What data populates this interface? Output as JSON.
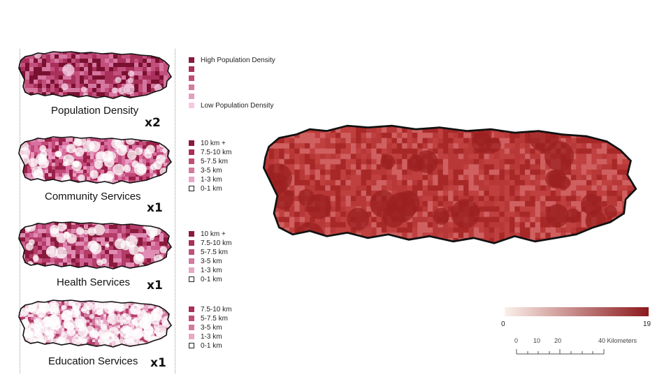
{
  "panels": [
    {
      "id": "population",
      "title": "Population Density",
      "weight": "x2",
      "colors": [
        "#7a1030",
        "#a8305a",
        "#c24f7c",
        "#d576a0",
        "#e6a5c4",
        "#f6d6e8"
      ],
      "legend": [
        {
          "label": "High Population Density",
          "color": "#8a1a3c"
        },
        {
          "label": "",
          "color": "#a8305a"
        },
        {
          "label": "",
          "color": "#bf4f7a"
        },
        {
          "label": "",
          "color": "#d27aa0"
        },
        {
          "label": "",
          "color": "#e0a2c0"
        },
        {
          "label": "Low Population Density",
          "color": "#f6c9e2"
        }
      ]
    },
    {
      "id": "community",
      "title": "Community Services",
      "weight": "x1",
      "colors": [
        "#9a2048",
        "#c24a78",
        "#d870a0",
        "#e89cc0",
        "#f4c6dc",
        "#ffffff"
      ],
      "legend": [
        {
          "label": "10 km +",
          "color": "#8a1a3c"
        },
        {
          "label": "7.5-10 km",
          "color": "#a8305a"
        },
        {
          "label": "5-7.5 km",
          "color": "#bf4f7a"
        },
        {
          "label": "3-5 km",
          "color": "#d27aa0"
        },
        {
          "label": "1-3 km",
          "color": "#e6a8c6"
        },
        {
          "label": "0-1 km",
          "color": "#ffffff"
        }
      ]
    },
    {
      "id": "health",
      "title": "Health Services",
      "weight": "x1",
      "colors": [
        "#8a1a3c",
        "#b33c68",
        "#cd6090",
        "#e08cb4",
        "#f0bcd6",
        "#ffffff"
      ],
      "legend": [
        {
          "label": "10 km +",
          "color": "#8a1a3c"
        },
        {
          "label": "7.5-10 km",
          "color": "#a8305a"
        },
        {
          "label": "5-7.5 km",
          "color": "#bf4f7a"
        },
        {
          "label": "3-5 km",
          "color": "#d27aa0"
        },
        {
          "label": "1-3 km",
          "color": "#e6a8c6"
        },
        {
          "label": "0-1 km",
          "color": "#ffffff"
        }
      ]
    },
    {
      "id": "education",
      "title": "Education Services",
      "weight": "x1",
      "colors": [
        "#b33c68",
        "#d27aa0",
        "#e6a8c6",
        "#f4d0e2",
        "#ffffff"
      ],
      "legend": [
        {
          "label": "7.5-10 km",
          "color": "#a8305a"
        },
        {
          "label": "5-7.5 km",
          "color": "#bf4f7a"
        },
        {
          "label": "3-5 km",
          "color": "#d27aa0"
        },
        {
          "label": "1-3 km",
          "color": "#e6a8c6"
        },
        {
          "label": "0-1 km",
          "color": "#ffffff"
        }
      ]
    }
  ],
  "result_map": {
    "colors": [
      "#c04040",
      "#b83838",
      "#d06060",
      "#a82828",
      "#e09090",
      "#9c2020"
    ],
    "gradient_min": "0",
    "gradient_max": "19",
    "gradient_from": "#fbf0ea",
    "gradient_to": "#8c1a1e"
  },
  "scale_bar": {
    "ticks": [
      "0",
      "10",
      "20",
      "40 Kilometers"
    ]
  }
}
